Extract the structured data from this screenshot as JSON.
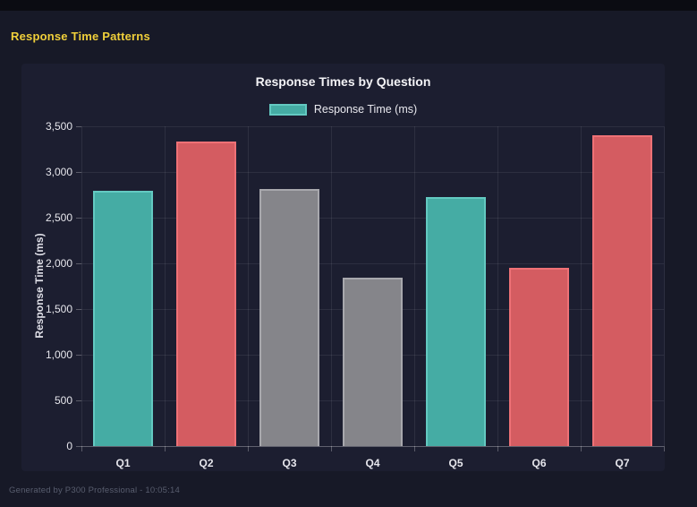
{
  "header": {
    "title": "Response Time Patterns"
  },
  "footer": {
    "text": "Generated by P300 Professional - 10:05:14"
  },
  "chart": {
    "title": "Response Times by Question",
    "legend_label": "Response Time (ms)",
    "y_axis_title": "Response Time (ms)"
  },
  "colors": {
    "accent_yellow": "#f0cf3a",
    "page_background": "#171927",
    "panel_background": "#1c1e30",
    "teal": "#45aca4",
    "teal_border": "#63c9c1",
    "red": "#d45c61",
    "red_border": "#ee7176",
    "gray": "#85858a",
    "gray_border": "#a8a8ad"
  },
  "chart_data": {
    "type": "bar",
    "title": "Response Times by Question",
    "categories": [
      "Q1",
      "Q2",
      "Q3",
      "Q4",
      "Q5",
      "Q6",
      "Q7"
    ],
    "values": [
      2795,
      3330,
      2810,
      1840,
      2725,
      1950,
      3405
    ],
    "bar_colors": [
      "#45aca4",
      "#d45c61",
      "#85858a",
      "#85858a",
      "#45aca4",
      "#d45c61",
      "#d45c61"
    ],
    "bar_border_colors": [
      "#63c9c1",
      "#ee7176",
      "#a8a8ad",
      "#a8a8ad",
      "#63c9c1",
      "#ee7176",
      "#ee7176"
    ],
    "xlabel": "",
    "ylabel": "Response Time (ms)",
    "ylim": [
      0,
      3500
    ],
    "ytick_step": 500,
    "ytick_labels": [
      "0",
      "500",
      "1,000",
      "1,500",
      "2,000",
      "2,500",
      "3,000",
      "3,500"
    ],
    "legend": {
      "position": "top",
      "entries": [
        "Response Time (ms)"
      ]
    },
    "grid": true
  }
}
